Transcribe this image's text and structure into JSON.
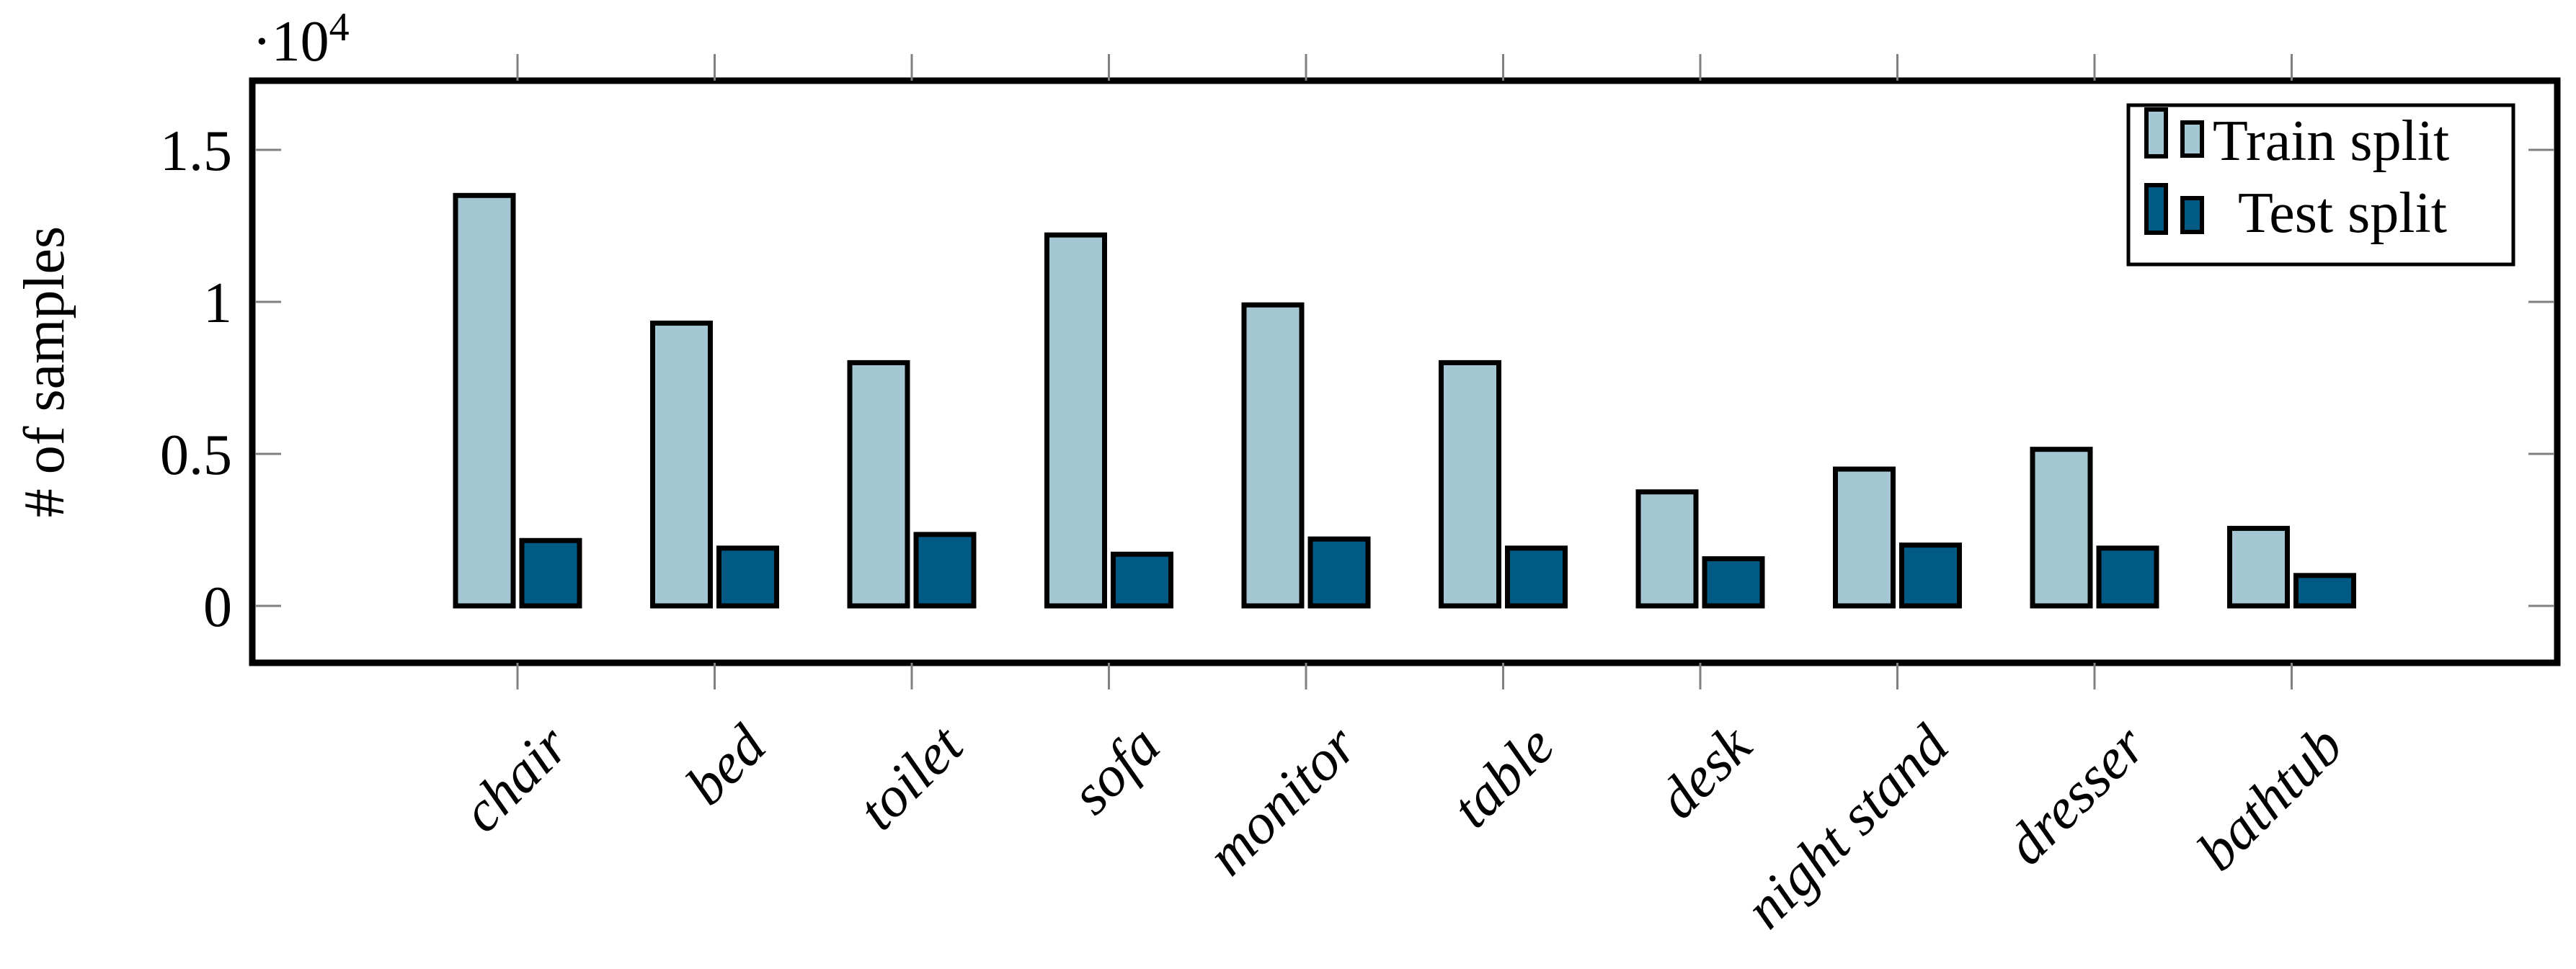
{
  "figure": {
    "background": "#ffffff"
  },
  "chart_data": {
    "type": "bar",
    "title": "",
    "ylabel": "# of samples",
    "y_exponent": {
      "base": "·10",
      "exp": "4"
    },
    "categories": [
      "chair",
      "bed",
      "toilet",
      "sofa",
      "monitor",
      "table",
      "desk",
      "night stand",
      "dresser",
      "bathtub"
    ],
    "series": [
      {
        "name": "Train split",
        "color": "#a5c7d4",
        "values": [
          13500,
          9300,
          8000,
          12200,
          9900,
          8000,
          3750,
          4500,
          5150,
          2550
        ]
      },
      {
        "name": "Test split",
        "color": "#015a84",
        "values": [
          2150,
          1900,
          2350,
          1700,
          2200,
          1900,
          1550,
          2000,
          1900,
          1000
        ]
      }
    ],
    "yticks": {
      "values": [
        0,
        5000,
        10000,
        15000
      ],
      "labels": [
        "0",
        "0.5",
        "1",
        "1.5"
      ]
    },
    "ylim": [
      -1870,
      17280
    ],
    "unit_multiplier": 10000,
    "legend_position": "top-right",
    "grid": false,
    "axis_color": "#000000",
    "tick_color": "#808080",
    "bar_outline_color": "#000000"
  }
}
